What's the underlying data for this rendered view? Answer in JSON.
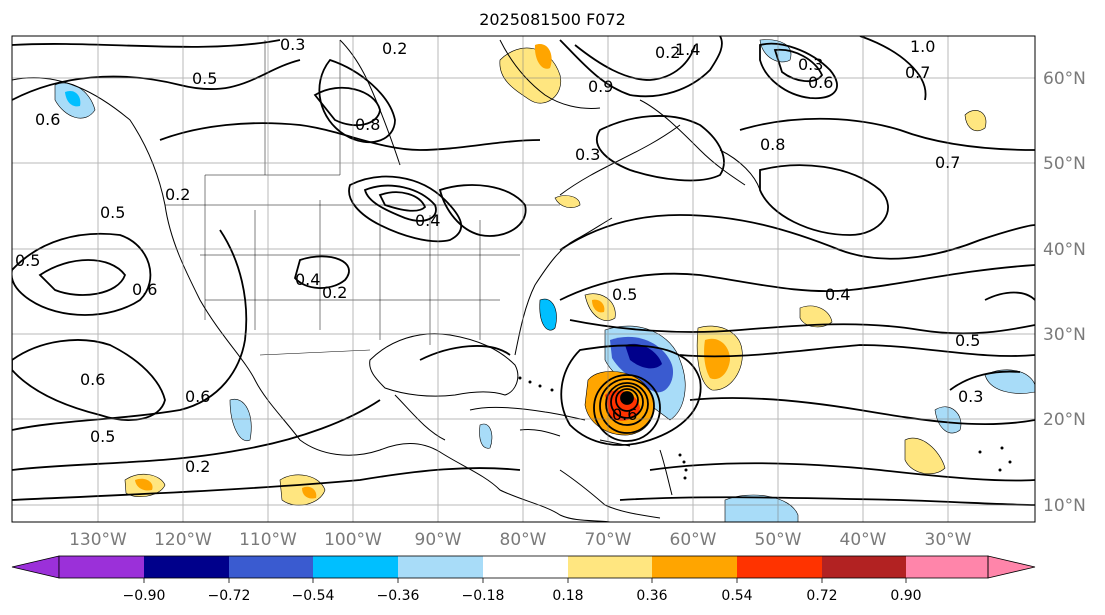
{
  "title": "2025081500 F072",
  "lon_labels": [
    "130°W",
    "120°W",
    "110°W",
    "100°W",
    "90°W",
    "80°W",
    "70°W",
    "60°W",
    "50°W",
    "40°W",
    "30°W"
  ],
  "lat_labels": [
    "60°N",
    "50°N",
    "40°N",
    "30°N",
    "20°N",
    "10°N"
  ],
  "colorbar": {
    "colors": [
      "#9b30d9",
      "#00008b",
      "#3a5bd0",
      "#00bfff",
      "#a8dcf8",
      "#ffffff",
      "#ffe680",
      "#ffa500",
      "#ff3300",
      "#b22222",
      "#ff85aa"
    ],
    "tick_labels": [
      "−0.90",
      "−0.72",
      "−0.54",
      "−0.36",
      "−0.18",
      "0.18",
      "0.36",
      "0.54",
      "0.72",
      "0.90"
    ]
  },
  "contour_labels": [
    "0.3",
    "0.2",
    "0.5",
    "0.2",
    "1.4",
    "1.0",
    "0.7",
    "0.3",
    "0.6",
    "0.8",
    "0.6",
    "0.9",
    "0.3",
    "0.8",
    "0.7",
    "0.5",
    "0.2",
    "0.4",
    "0.5",
    "0.6",
    "0.6",
    "0.4",
    "0.2",
    "0.5",
    "0.4",
    "0.5",
    "0.6",
    "0.6",
    "0.5",
    "0.2",
    "0.3"
  ]
}
